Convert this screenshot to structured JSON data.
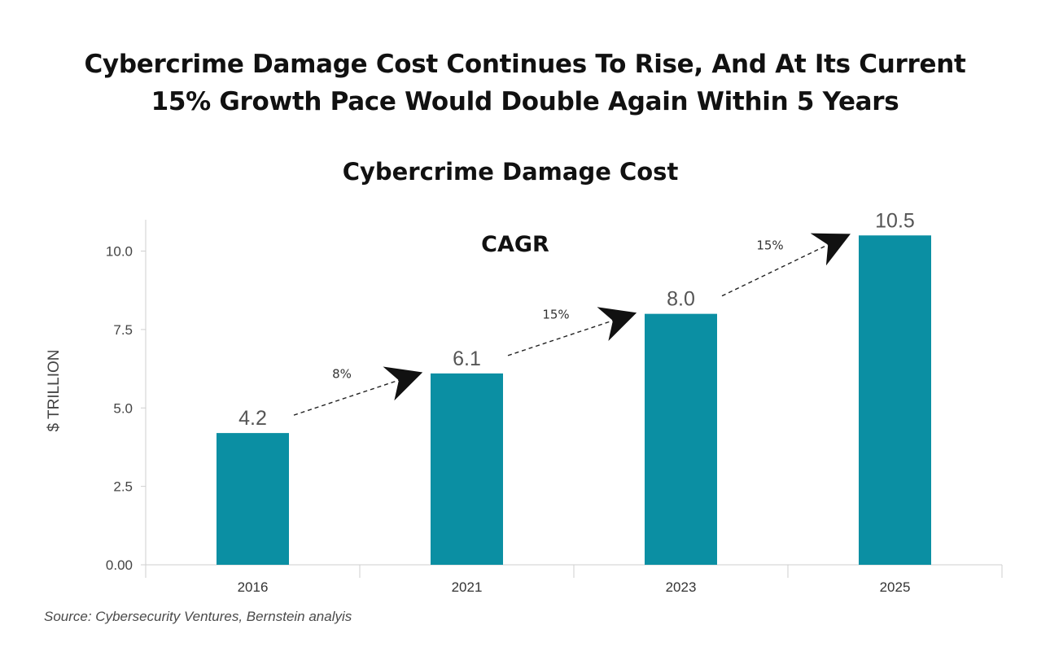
{
  "headline": {
    "line1": "Cybercrime Damage Cost Continues To Rise, And At Its Current",
    "line2": "15% Growth Pace Would Double Again Within 5 Years"
  },
  "source": "Source: Cybersecurity Ventures, Bernstein analyis",
  "chart_data": {
    "type": "bar",
    "title": "Cybercrime Damage Cost",
    "ylabel": "$ TRILLION",
    "xlabel": "",
    "categories": [
      "2016",
      "2021",
      "2023",
      "2025"
    ],
    "values": [
      4.2,
      6.1,
      8.0,
      10.5
    ],
    "value_labels": [
      "4.2",
      "6.1",
      "8.0",
      "10.5"
    ],
    "ylim": [
      0,
      11
    ],
    "yticks": [
      0,
      2.5,
      5.0,
      7.5,
      10.0
    ],
    "ytick_labels": [
      "0.00",
      "2.5",
      "5.0",
      "7.5",
      "10.0"
    ],
    "grid": false,
    "bar_color": "#0b8fa3",
    "annotation_heading": "CAGR",
    "growth_arrows": [
      {
        "from": "2016",
        "to": "2021",
        "label": "8%"
      },
      {
        "from": "2021",
        "to": "2023",
        "label": "15%"
      },
      {
        "from": "2023",
        "to": "2025",
        "label": "15%"
      }
    ]
  }
}
